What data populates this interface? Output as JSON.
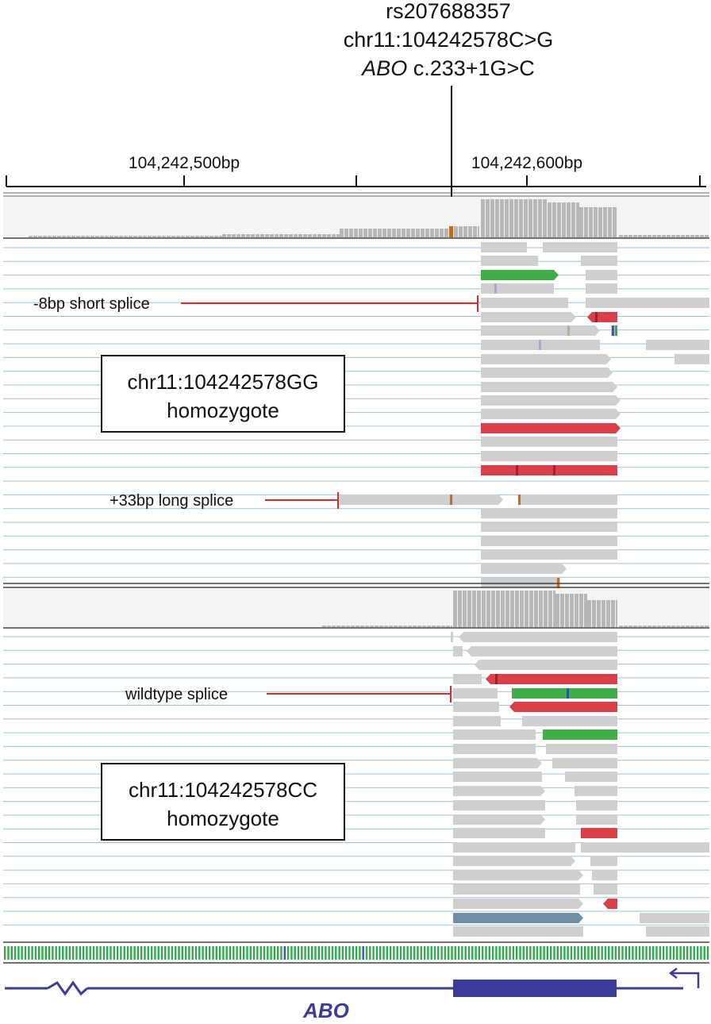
{
  "variant_header": {
    "rsid": "rs207688357",
    "genomic": "chr11:104242578C>G",
    "gene_symbol": "ABO",
    "hgvs": " c.233+1G>C"
  },
  "ruler": {
    "labels": [
      "104,242,500bp",
      "104,242,600bp"
    ]
  },
  "panels": {
    "gg": {
      "title_line1": "chr11:104242578GG",
      "title_line2": "homozygote",
      "annotations": [
        "-8bp short splice",
        "+33bp long splice"
      ]
    },
    "cc": {
      "title_line1": "chr11:104242578CC",
      "title_line2": "homozygote",
      "annotations": [
        "wildtype splice"
      ]
    }
  },
  "gene_track": {
    "name": "ABO"
  },
  "colors": {
    "read_default": "#cfcfd1",
    "read_red": "#d9404a",
    "read_green": "#3fae49",
    "read_blue": "#6f8fa6",
    "row_line": "#9fc0d9",
    "gene": "#3b3b9a",
    "annotation_line": "#d92a2a",
    "base_A": "#35a94f",
    "base_C": "#3a53c4",
    "base_G": "#e29a2d",
    "base_T": "#d33a3a"
  }
}
